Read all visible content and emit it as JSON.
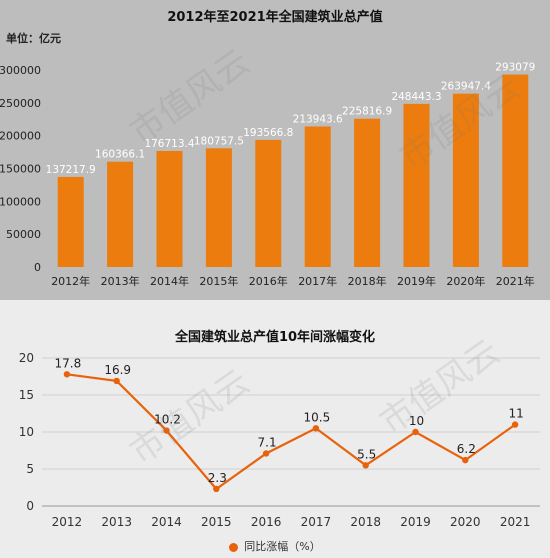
{
  "charts": {
    "top": {
      "title": "2012年至2021年全国建筑业总产值",
      "unit": "单位：亿元"
    },
    "bottom": {
      "title": "全国建筑业总产值10年间涨幅变化",
      "legend": "同比涨幅（%）"
    }
  },
  "watermark": "市值风云",
  "colors": {
    "bar": "#ec7c0d",
    "line": "#e8620c",
    "top_bg": "#bdbdbd",
    "bottom_bg": "#ececec"
  },
  "chart_data": [
    {
      "type": "bar",
      "title": "2012年至2021年全国建筑业总产值",
      "ylabel": "单位：亿元",
      "categories": [
        "2012年",
        "2013年",
        "2014年",
        "2015年",
        "2016年",
        "2017年",
        "2018年",
        "2019年",
        "2020年",
        "2021年"
      ],
      "values": [
        137217.9,
        160366.1,
        176713.4,
        180757.5,
        193566.8,
        213943.6,
        225816.9,
        248443.3,
        263947.4,
        293079
      ],
      "value_labels": [
        "137217.9",
        "160366.1",
        "176713.4",
        "180757.5",
        "193566.8",
        "213943.6",
        "225816.9",
        "248443.3",
        "263947.4",
        "293079"
      ],
      "ylim": [
        0,
        300000
      ],
      "yticks": [
        0,
        50000,
        100000,
        150000,
        200000,
        250000,
        300000
      ],
      "grid": false
    },
    {
      "type": "line",
      "title": "全国建筑业总产值10年间涨幅变化",
      "categories": [
        "2012",
        "2013",
        "2014",
        "2015",
        "2016",
        "2017",
        "2018",
        "2019",
        "2020",
        "2021"
      ],
      "series": [
        {
          "name": "同比涨幅（%）",
          "values": [
            17.8,
            16.9,
            10.2,
            2.3,
            7.1,
            10.5,
            5.5,
            10,
            6.2,
            11
          ]
        }
      ],
      "value_labels": [
        "17.8",
        "16.9",
        "10.2",
        "2.3",
        "7.1",
        "10.5",
        "5.5",
        "10",
        "6.2",
        "11"
      ],
      "ylim": [
        0,
        20
      ],
      "yticks": [
        0,
        5,
        10,
        15,
        20
      ],
      "grid": true,
      "legend": "bottom"
    }
  ]
}
